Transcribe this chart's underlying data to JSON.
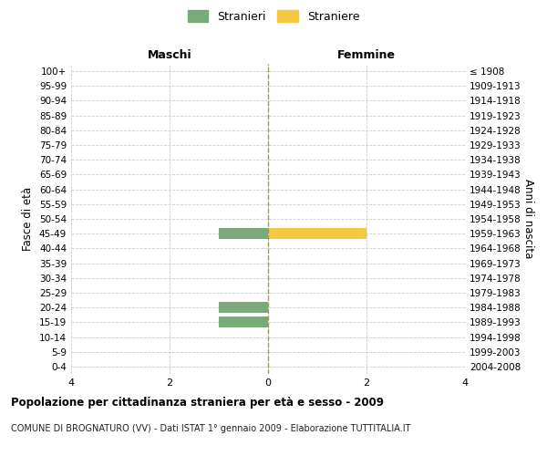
{
  "age_groups": [
    "100+",
    "95-99",
    "90-94",
    "85-89",
    "80-84",
    "75-79",
    "70-74",
    "65-69",
    "60-64",
    "55-59",
    "50-54",
    "45-49",
    "40-44",
    "35-39",
    "30-34",
    "25-29",
    "20-24",
    "15-19",
    "10-14",
    "5-9",
    "0-4"
  ],
  "birth_years": [
    "≤ 1908",
    "1909-1913",
    "1914-1918",
    "1919-1923",
    "1924-1928",
    "1929-1933",
    "1934-1938",
    "1939-1943",
    "1944-1948",
    "1949-1953",
    "1954-1958",
    "1959-1963",
    "1964-1968",
    "1969-1973",
    "1974-1978",
    "1979-1983",
    "1984-1988",
    "1989-1993",
    "1994-1998",
    "1999-2003",
    "2004-2008"
  ],
  "males": [
    0,
    0,
    0,
    0,
    0,
    0,
    0,
    0,
    0,
    0,
    0,
    1,
    0,
    0,
    0,
    0,
    1,
    1,
    0,
    0,
    0
  ],
  "females": [
    0,
    0,
    0,
    0,
    0,
    0,
    0,
    0,
    0,
    0,
    0,
    2,
    0,
    0,
    0,
    0,
    0,
    0,
    0,
    0,
    0
  ],
  "male_color": "#7aaa7a",
  "female_color": "#f5c842",
  "xlim": [
    -4,
    4
  ],
  "xticks": [
    -4,
    -2,
    0,
    2,
    4
  ],
  "xticklabels": [
    "4",
    "2",
    "0",
    "2",
    "4"
  ],
  "title": "Popolazione per cittadinanza straniera per età e sesso - 2009",
  "subtitle": "COMUNE DI BROGNATURO (VV) - Dati ISTAT 1° gennaio 2009 - Elaborazione TUTTITALIA.IT",
  "ylabel_left": "Fasce di età",
  "ylabel_right": "Anni di nascita",
  "legend_male": "Stranieri",
  "legend_female": "Straniere",
  "maschi_label": "Maschi",
  "femmine_label": "Femmine",
  "bar_height": 0.75,
  "background_color": "#ffffff",
  "grid_color": "#cccccc",
  "center_line_color": "#999966"
}
